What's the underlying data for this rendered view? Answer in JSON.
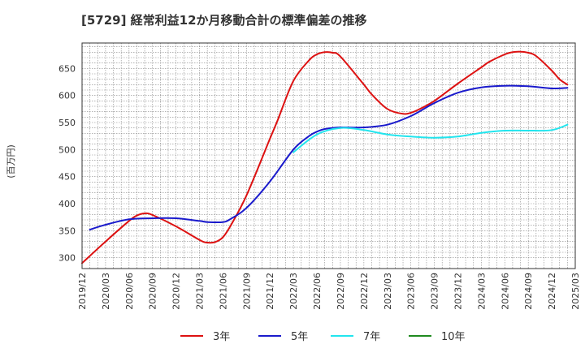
{
  "chart_data": {
    "type": "line",
    "title": "[5729]  経常利益12か月移動合計の標準偏差の推移",
    "ylabel": "(百万円)",
    "xlabel": "",
    "x_tick_labels": [
      "2019/12",
      "2020/03",
      "2020/06",
      "2020/09",
      "2020/12",
      "2021/03",
      "2021/06",
      "2021/09",
      "2021/12",
      "2022/03",
      "2022/06",
      "2022/09",
      "2022/12",
      "2023/03",
      "2023/06",
      "2023/09",
      "2023/12",
      "2024/03",
      "2024/06",
      "2024/09",
      "2024/12",
      "2025/03"
    ],
    "y_ticks": [
      300,
      350,
      400,
      450,
      500,
      550,
      600,
      650
    ],
    "ylim": [
      280,
      697
    ],
    "grid": true,
    "legend_position": "bottom",
    "series": [
      {
        "name": "3年",
        "color": "#dd1111",
        "points": [
          [
            "2019/12",
            290
          ],
          [
            "2020/03",
            330
          ],
          [
            "2020/06",
            368
          ],
          [
            "2020/07",
            378
          ],
          [
            "2020/08",
            382
          ],
          [
            "2020/09",
            379
          ],
          [
            "2020/12",
            358
          ],
          [
            "2021/03",
            333
          ],
          [
            "2021/04",
            328
          ],
          [
            "2021/05",
            329
          ],
          [
            "2021/06",
            338
          ],
          [
            "2021/07",
            360
          ],
          [
            "2021/09",
            415
          ],
          [
            "2021/12",
            520
          ],
          [
            "2022/01",
            555
          ],
          [
            "2022/03",
            627
          ],
          [
            "2022/05",
            665
          ],
          [
            "2022/06",
            676
          ],
          [
            "2022/07",
            680
          ],
          [
            "2022/08",
            679
          ],
          [
            "2022/09",
            672
          ],
          [
            "2022/12",
            620
          ],
          [
            "2023/01",
            602
          ],
          [
            "2023/03",
            575
          ],
          [
            "2023/05",
            566
          ],
          [
            "2023/06",
            568
          ],
          [
            "2023/07",
            574
          ],
          [
            "2023/09",
            590
          ],
          [
            "2023/12",
            622
          ],
          [
            "2024/03",
            652
          ],
          [
            "2024/04",
            662
          ],
          [
            "2024/06",
            676
          ],
          [
            "2024/07",
            680
          ],
          [
            "2024/08",
            681
          ],
          [
            "2024/09",
            679
          ],
          [
            "2024/10",
            673
          ],
          [
            "2024/12",
            646
          ],
          [
            "2025/01",
            630
          ],
          [
            "2025/02",
            620
          ]
        ]
      },
      {
        "name": "5年",
        "color": "#1a1acc",
        "points": [
          [
            "2020/01",
            352
          ],
          [
            "2020/03",
            361
          ],
          [
            "2020/06",
            371
          ],
          [
            "2020/09",
            373
          ],
          [
            "2020/12",
            373
          ],
          [
            "2021/03",
            368
          ],
          [
            "2021/04",
            366
          ],
          [
            "2021/06",
            366
          ],
          [
            "2021/07",
            372
          ],
          [
            "2021/09",
            392
          ],
          [
            "2021/12",
            441
          ],
          [
            "2022/03",
            500
          ],
          [
            "2022/05",
            525
          ],
          [
            "2022/06",
            533
          ],
          [
            "2022/07",
            538
          ],
          [
            "2022/09",
            541
          ],
          [
            "2022/12",
            541
          ],
          [
            "2023/03",
            546
          ],
          [
            "2023/06",
            562
          ],
          [
            "2023/09",
            586
          ],
          [
            "2023/12",
            605
          ],
          [
            "2024/03",
            615
          ],
          [
            "2024/06",
            618
          ],
          [
            "2024/09",
            617
          ],
          [
            "2024/12",
            613
          ],
          [
            "2025/02",
            614
          ]
        ]
      },
      {
        "name": "7年",
        "color": "#22e5ee",
        "points": [
          [
            "2022/03",
            495
          ],
          [
            "2022/06",
            528
          ],
          [
            "2022/09",
            540
          ],
          [
            "2022/12",
            536
          ],
          [
            "2023/03",
            528
          ],
          [
            "2023/06",
            524
          ],
          [
            "2023/09",
            522
          ],
          [
            "2023/12",
            524
          ],
          [
            "2024/03",
            531
          ],
          [
            "2024/06",
            535
          ],
          [
            "2024/09",
            535
          ],
          [
            "2024/12",
            536
          ],
          [
            "2025/02",
            546
          ]
        ]
      },
      {
        "name": "10年",
        "color": "#1f8a1f",
        "points": []
      }
    ]
  }
}
